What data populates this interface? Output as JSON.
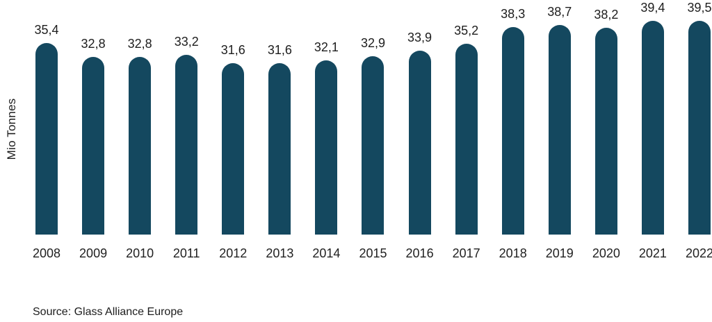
{
  "chart_data": {
    "type": "bar",
    "title": "",
    "xlabel": "",
    "ylabel": "Mio Tonnes",
    "categories": [
      "2008",
      "2009",
      "2010",
      "2011",
      "2012",
      "2013",
      "2014",
      "2015",
      "2016",
      "2017",
      "2018",
      "2019",
      "2020",
      "2021",
      "2022"
    ],
    "values": [
      35.4,
      32.8,
      32.8,
      33.2,
      31.6,
      31.6,
      32.1,
      32.9,
      33.9,
      35.2,
      38.3,
      38.7,
      38.2,
      39.4,
      39.5
    ],
    "value_labels": [
      "35,4",
      "32,8",
      "32,8",
      "33,2",
      "31,6",
      "31,6",
      "32,1",
      "32,9",
      "33,9",
      "35,2",
      "38,3",
      "38,7",
      "38,2",
      "39,4",
      "39,5"
    ],
    "ylim": [
      0,
      43.3
    ],
    "grid": false,
    "legend": null,
    "bar_color": "#14485F",
    "source": "Source: Glass Alliance Europe"
  }
}
